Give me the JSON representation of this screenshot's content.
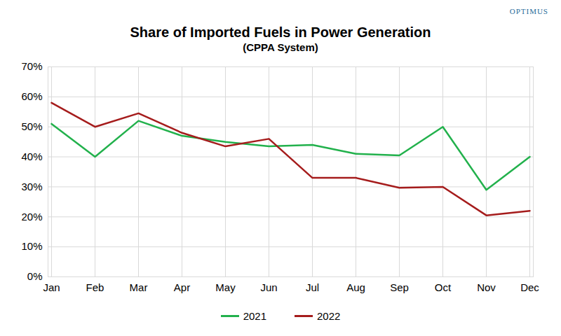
{
  "chart_data": {
    "type": "line",
    "title": "Share of Imported Fuels in Power Generation",
    "subtitle": "(CPPA System)",
    "annotations": [
      "OPTIMUS"
    ],
    "categories": [
      "Jan",
      "Feb",
      "Mar",
      "Apr",
      "May",
      "Jun",
      "Jul",
      "Aug",
      "Sep",
      "Oct",
      "Nov",
      "Dec"
    ],
    "series": [
      {
        "name": "2021",
        "color": "#22b14c",
        "values": [
          51,
          40,
          52,
          47,
          45,
          43.5,
          44,
          41,
          40.5,
          50,
          29,
          40
        ]
      },
      {
        "name": "2022",
        "color": "#a51c1c",
        "values": [
          58,
          50,
          54.5,
          48,
          43.5,
          46,
          33,
          33,
          29.7,
          30,
          20.5,
          22
        ]
      }
    ],
    "ylim": [
      0,
      70
    ],
    "yticks": [
      {
        "value": 0,
        "label": "0%"
      },
      {
        "value": 10,
        "label": "10%"
      },
      {
        "value": 20,
        "label": "20%"
      },
      {
        "value": 30,
        "label": "30%"
      },
      {
        "value": 40,
        "label": "40%"
      },
      {
        "value": 50,
        "label": "50%"
      },
      {
        "value": 60,
        "label": "60%"
      },
      {
        "value": 70,
        "label": "70%"
      }
    ],
    "grid": true,
    "legend": "bottom"
  }
}
